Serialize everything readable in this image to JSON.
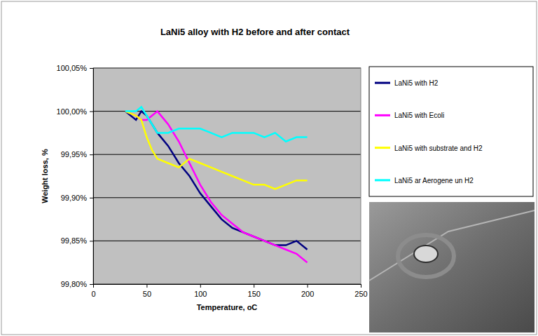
{
  "chart_data": {
    "type": "line",
    "title": "LaNi5 alloy with H2 before and after contact",
    "x_label": "Temperature, oC",
    "y_label": "Weight loss, %",
    "x": [
      30,
      40,
      45,
      50,
      55,
      60,
      70,
      80,
      90,
      100,
      110,
      120,
      130,
      140,
      150,
      160,
      170,
      180,
      190,
      200
    ],
    "series": [
      {
        "name": "LaNi5 with H2",
        "color": "#000080",
        "values": [
          100.0,
          99.99,
          100.0,
          99.995,
          99.985,
          99.975,
          99.96,
          99.94,
          99.925,
          99.905,
          99.89,
          99.875,
          99.865,
          99.86,
          99.855,
          99.85,
          99.845,
          99.845,
          99.85,
          99.84
        ]
      },
      {
        "name": "LaNi5 with Ecoli",
        "color": "#ff00ff",
        "values": [
          100.0,
          99.995,
          99.99,
          99.99,
          99.995,
          100.0,
          99.985,
          99.965,
          99.94,
          99.915,
          99.895,
          99.88,
          99.87,
          99.86,
          99.855,
          99.85,
          99.845,
          99.84,
          99.835,
          99.825
        ]
      },
      {
        "name": "LaNi5 with substrate and H2",
        "color": "#ffff00",
        "values": [
          100.0,
          99.995,
          99.99,
          99.97,
          99.955,
          99.945,
          99.94,
          99.935,
          99.945,
          99.94,
          99.935,
          99.93,
          99.925,
          99.92,
          99.915,
          99.915,
          99.91,
          99.915,
          99.92,
          99.92
        ]
      },
      {
        "name": "LaNi5 ar Aerogene un H2",
        "color": "#00ffff",
        "values": [
          100.0,
          100.0,
          100.005,
          99.995,
          99.985,
          99.975,
          99.975,
          99.98,
          99.98,
          99.98,
          99.975,
          99.97,
          99.975,
          99.975,
          99.975,
          99.97,
          99.975,
          99.965,
          99.97,
          99.97
        ]
      }
    ],
    "xlim": [
      0,
      250
    ],
    "xticks": [
      0,
      50,
      100,
      150,
      200,
      250
    ],
    "ylim": [
      99.8,
      100.05
    ],
    "yticks": [
      {
        "value": 99.8,
        "label": "99,80%"
      },
      {
        "value": 99.85,
        "label": "99,85%"
      },
      {
        "value": 99.9,
        "label": "99,90%"
      },
      {
        "value": 99.95,
        "label": "99,95%"
      },
      {
        "value": 100.0,
        "label": "100,00%"
      },
      {
        "value": 100.05,
        "label": "100,05%"
      }
    ],
    "grid": true,
    "legend": "right"
  }
}
